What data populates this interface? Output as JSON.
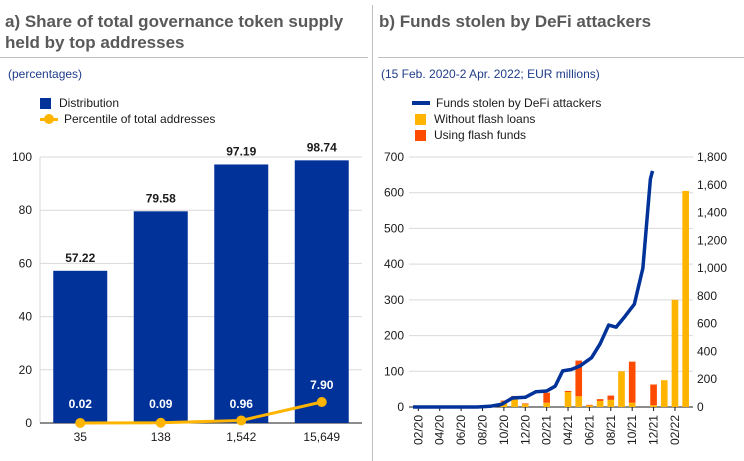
{
  "colors": {
    "dark_blue": "#003299",
    "yellow": "#ffb400",
    "orange": "#ff4b00",
    "grid": "#d9d9d9",
    "axis": "#1a1a1a"
  },
  "panel_a": {
    "title_line1": "a) Share of total governance token supply",
    "title_line2": "held by top addresses",
    "subtitle": "(percentages)",
    "legend": [
      {
        "label": "Distribution",
        "swatch": "dark_blue-square"
      },
      {
        "label": "Percentile of total addresses",
        "swatch": "yellow-dot-line"
      }
    ]
  },
  "panel_b": {
    "title": "b) Funds stolen by DeFi attackers",
    "subtitle": "(15 Feb. 2020-2 Apr. 2022; EUR millions)",
    "legend": [
      {
        "label": "Funds stolen by DeFi attackers",
        "swatch": "dark_blue-line"
      },
      {
        "label": "Without flash loans",
        "swatch": "yellow-square"
      },
      {
        "label": "Using flash funds",
        "swatch": "orange-square"
      }
    ]
  },
  "chart_data": [
    {
      "type": "bar",
      "categories": [
        "35",
        "138",
        "1,542",
        "15,649"
      ],
      "ylim": [
        0,
        100
      ],
      "yticks": [
        0,
        20,
        40,
        60,
        80,
        100
      ],
      "series": [
        {
          "name": "Distribution",
          "type": "bar",
          "values": [
            57.22,
            79.58,
            97.19,
            98.74
          ],
          "labels": [
            "57.22",
            "79.58",
            "97.19",
            "98.74"
          ]
        },
        {
          "name": "Percentile of total addresses",
          "type": "line",
          "values": [
            0.02,
            0.09,
            0.96,
            7.9
          ],
          "labels": [
            "0.02",
            "0.09",
            "0.96",
            "7.90"
          ]
        }
      ],
      "grid": true
    },
    {
      "type": "bar",
      "x_ticks": [
        "02/20",
        "04/20",
        "06/20",
        "08/20",
        "10/20",
        "12/20",
        "02/21",
        "04/21",
        "06/21",
        "08/21",
        "10/21",
        "12/21",
        "02/22"
      ],
      "y_left": {
        "range": [
          0,
          700
        ],
        "ticks": [
          0,
          100,
          200,
          300,
          400,
          500,
          600,
          700
        ],
        "tick_labels": [
          "0",
          "100",
          "200",
          "300",
          "400",
          "500",
          "600",
          "700"
        ]
      },
      "y_right": {
        "range": [
          0,
          1800
        ],
        "ticks": [
          0,
          200,
          400,
          600,
          800,
          1000,
          1200,
          1400,
          1600,
          1800
        ],
        "tick_labels": [
          "0",
          "200",
          "400",
          "600",
          "800",
          "1,000",
          "1,200",
          "1,400",
          "1,600",
          "1,800"
        ]
      },
      "bars": [
        {
          "month": "10/20",
          "without_flash_loans": 15,
          "using_flash_funds": 3
        },
        {
          "month": "11/20",
          "without_flash_loans": 23,
          "using_flash_funds": 8
        },
        {
          "month": "12/20",
          "without_flash_loans": 8,
          "using_flash_funds": 2
        },
        {
          "month": "02/21",
          "without_flash_loans": 12,
          "using_flash_funds": 28
        },
        {
          "month": "04/21",
          "without_flash_loans": 42,
          "using_flash_funds": 3
        },
        {
          "month": "05/21",
          "without_flash_loans": 30,
          "using_flash_funds": 100
        },
        {
          "month": "06/21",
          "without_flash_loans": 4,
          "using_flash_funds": 2
        },
        {
          "month": "07/21",
          "without_flash_loans": 17,
          "using_flash_funds": 5
        },
        {
          "month": "08/21",
          "without_flash_loans": 20,
          "using_flash_funds": 12
        },
        {
          "month": "09/21",
          "without_flash_loans": 100,
          "using_flash_funds": 0
        },
        {
          "month": "10/21",
          "without_flash_loans": 12,
          "using_flash_funds": 115
        },
        {
          "month": "12/21",
          "without_flash_loans": 5,
          "using_flash_funds": 58
        },
        {
          "month": "01/22",
          "without_flash_loans": 75,
          "using_flash_funds": 0
        },
        {
          "month": "02/22",
          "without_flash_loans": 300,
          "using_flash_funds": 0
        },
        {
          "month": "03/22",
          "without_flash_loans": 605,
          "using_flash_funds": 0
        }
      ],
      "cumulative_line": {
        "name": "Funds stolen by DeFi attackers",
        "axis": "right",
        "points": [
          [
            0,
            0
          ],
          [
            3,
            0
          ],
          [
            6,
            0
          ],
          [
            7.2,
            5
          ],
          [
            8.3,
            20
          ],
          [
            9.3,
            65
          ],
          [
            10.5,
            70
          ],
          [
            11.5,
            110
          ],
          [
            12.5,
            115
          ],
          [
            13.3,
            150
          ],
          [
            14,
            260
          ],
          [
            14.8,
            270
          ],
          [
            15.6,
            295
          ],
          [
            16.7,
            355
          ],
          [
            17.5,
            455
          ],
          [
            18.3,
            590
          ],
          [
            19,
            575
          ],
          [
            19.8,
            650
          ],
          [
            20.7,
            740
          ],
          [
            21.5,
            1000
          ],
          [
            22.2,
            1640
          ],
          [
            22.4,
            1700
          ]
        ]
      }
    }
  ]
}
